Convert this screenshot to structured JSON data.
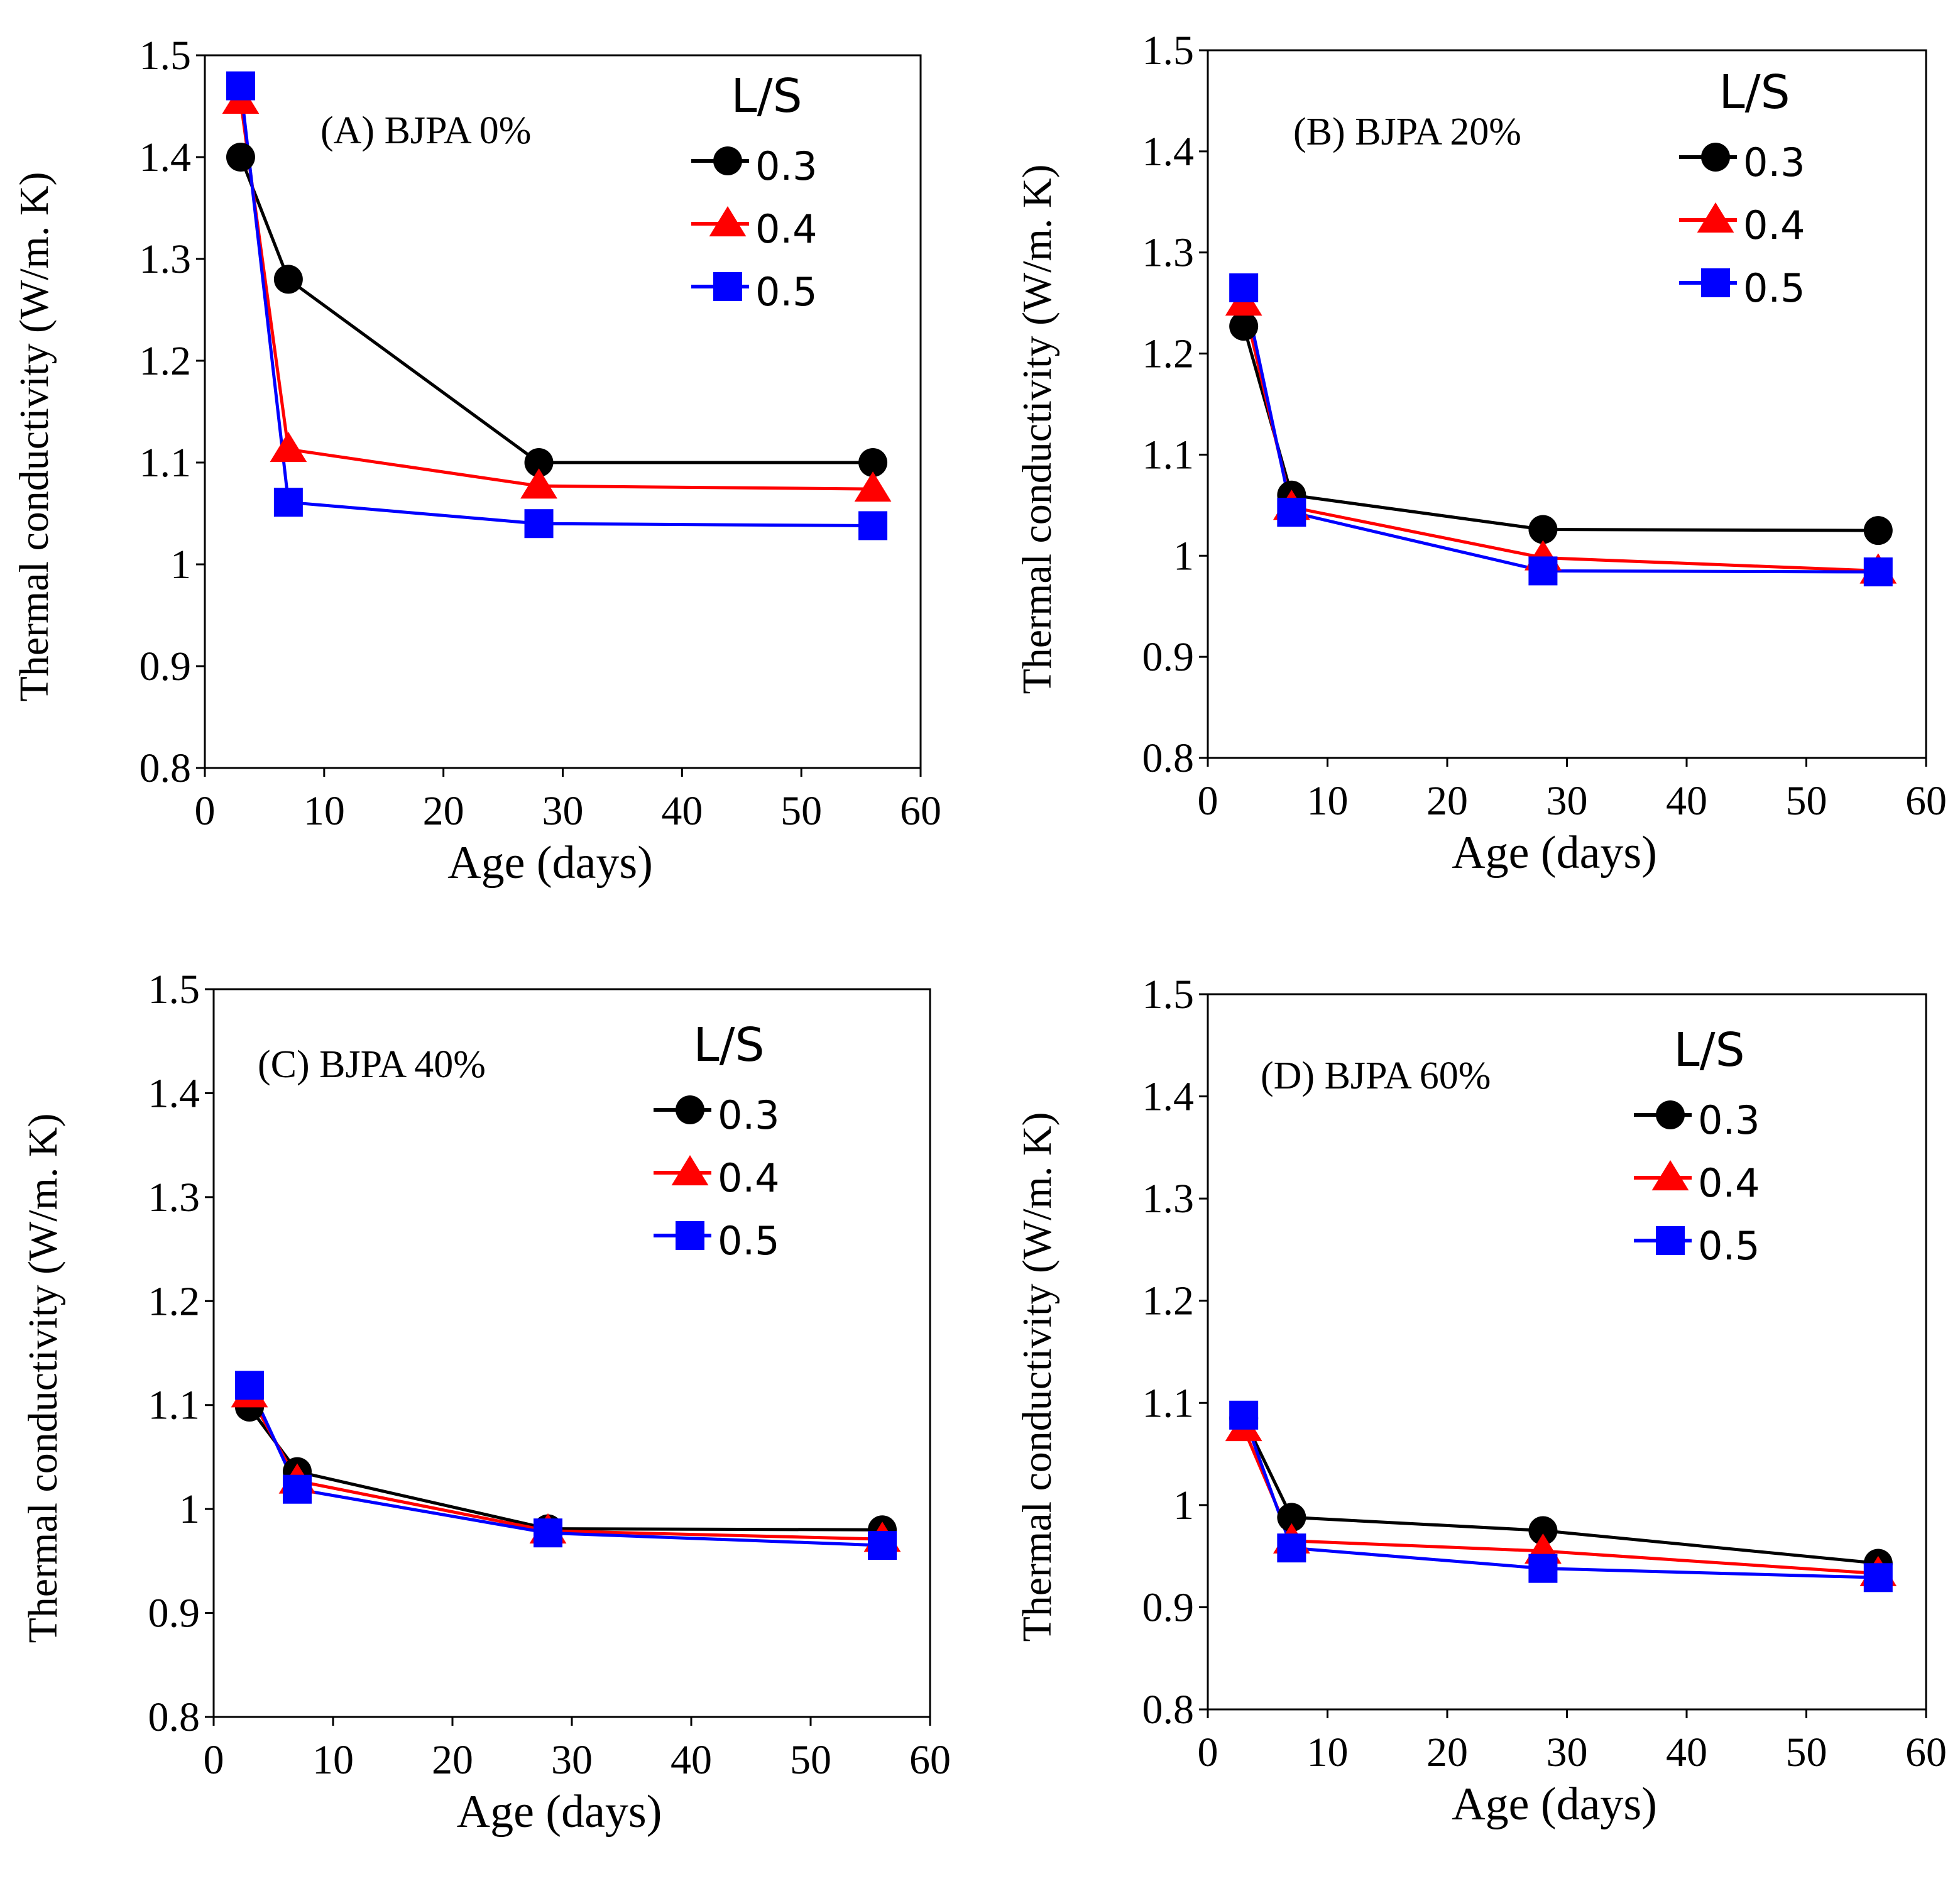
{
  "figure": {
    "legend_title": "L/S",
    "colors": {
      "0.3": "#000000",
      "0.4": "#ff0000",
      "0.5": "#0000ff"
    }
  },
  "chart_data": [
    {
      "type": "line",
      "title": "(A)  BJPA 0%",
      "xlabel": "Age (days)",
      "ylabel": "Thermal conductivity (W/m.  K)",
      "xlim": [
        0,
        60
      ],
      "ylim": [
        0.8,
        1.5
      ],
      "xticks": [
        "0",
        "10",
        "20",
        "30",
        "40",
        "50",
        "60"
      ],
      "yticks": [
        "0.8",
        "0.9",
        "1",
        "1.1",
        "1.2",
        "1.3",
        "1.4",
        "1.5"
      ],
      "legend_title": "L/S",
      "x": [
        3,
        7,
        28,
        56
      ],
      "series": [
        {
          "name": "0.3",
          "marker": "circle",
          "values": [
            1.4,
            1.28,
            1.1,
            1.1
          ]
        },
        {
          "name": "0.4",
          "marker": "triangle",
          "values": [
            1.455,
            1.113,
            1.077,
            1.074
          ]
        },
        {
          "name": "0.5",
          "marker": "square",
          "values": [
            1.47,
            1.061,
            1.04,
            1.038
          ]
        }
      ]
    },
    {
      "type": "line",
      "title": "(B)  BJPA 20%",
      "xlabel": "Age (days)",
      "ylabel": "Thermal conductivity (W/m.  K)",
      "xlim": [
        0,
        60
      ],
      "ylim": [
        0.8,
        1.5
      ],
      "xticks": [
        "0",
        "10",
        "20",
        "30",
        "40",
        "50",
        "60"
      ],
      "yticks": [
        "0.8",
        "0.9",
        "1",
        "1.1",
        "1.2",
        "1.3",
        "1.4",
        "1.5"
      ],
      "legend_title": "L/S",
      "x": [
        3,
        7,
        28,
        56
      ],
      "series": [
        {
          "name": "0.3",
          "marker": "circle",
          "values": [
            1.227,
            1.06,
            1.026,
            1.025
          ]
        },
        {
          "name": "0.4",
          "marker": "triangle",
          "values": [
            1.25,
            1.048,
            0.998,
            0.985
          ]
        },
        {
          "name": "0.5",
          "marker": "square",
          "values": [
            1.265,
            1.043,
            0.985,
            0.984
          ]
        }
      ]
    },
    {
      "type": "line",
      "title": "(C)  BJPA 40%",
      "xlabel": "Age (days)",
      "ylabel": "Thermal conductivity (W/m.  K)",
      "xlim": [
        0,
        60
      ],
      "ylim": [
        0.8,
        1.5
      ],
      "xticks": [
        "0",
        "10",
        "20",
        "30",
        "40",
        "50",
        "60"
      ],
      "yticks": [
        "0.8",
        "0.9",
        "1",
        "1.1",
        "1.2",
        "1.3",
        "1.4",
        "1.5"
      ],
      "legend_title": "L/S",
      "x": [
        3,
        7,
        28,
        56
      ],
      "series": [
        {
          "name": "0.3",
          "marker": "circle",
          "values": [
            1.098,
            1.036,
            0.981,
            0.98
          ]
        },
        {
          "name": "0.4",
          "marker": "triangle",
          "values": [
            1.11,
            1.027,
            0.979,
            0.971
          ]
        },
        {
          "name": "0.5",
          "marker": "square",
          "values": [
            1.119,
            1.019,
            0.977,
            0.965
          ]
        }
      ]
    },
    {
      "type": "line",
      "title": "(D) BJPA 60%",
      "xlabel": "Age (days)",
      "ylabel": "Thermal conductivity (W/m.  K)",
      "xlim": [
        0,
        60
      ],
      "ylim": [
        0.8,
        1.5
      ],
      "xticks": [
        "0",
        "10",
        "20",
        "30",
        "40",
        "50",
        "60"
      ],
      "yticks": [
        "0.8",
        "0.9",
        "1",
        "1.1",
        "1.2",
        "1.3",
        "1.4",
        "1.5"
      ],
      "legend_title": "L/S",
      "x": [
        3,
        7,
        28,
        56
      ],
      "series": [
        {
          "name": "0.3",
          "marker": "circle",
          "values": [
            1.085,
            0.988,
            0.975,
            0.943
          ]
        },
        {
          "name": "0.4",
          "marker": "triangle",
          "values": [
            1.075,
            0.965,
            0.955,
            0.933
          ]
        },
        {
          "name": "0.5",
          "marker": "square",
          "values": [
            1.088,
            0.958,
            0.938,
            0.929
          ]
        }
      ]
    }
  ]
}
